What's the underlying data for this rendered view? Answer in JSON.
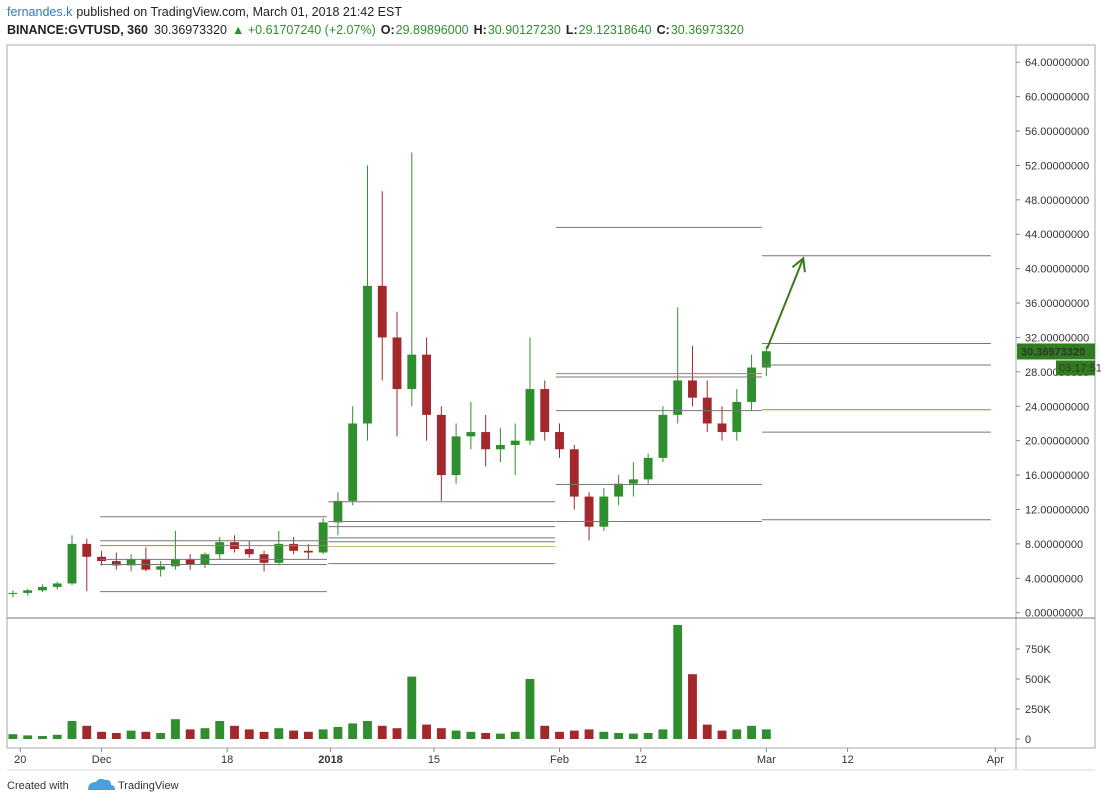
{
  "header": {
    "author": "fernandes.k",
    "published": "published on TradingView.com, March 01, 2018 21:42 EST",
    "symbol": "BINANCE:GVTUSD, 360",
    "last": "30.36973320",
    "change": "▲ +0.61707240 (+2.07%)",
    "ohlc": [
      {
        "label": "O:",
        "value": "29.89896000"
      },
      {
        "label": "H:",
        "value": "30.90127230"
      },
      {
        "label": "L:",
        "value": "29.12318640"
      },
      {
        "label": "C:",
        "value": "30.36973320"
      }
    ]
  },
  "chart_data": [
    {
      "type": "candlestick",
      "up_color": "#2f8f2f",
      "down_color": "#a3282c",
      "x": [
        -1,
        1,
        3,
        5,
        7,
        9,
        11,
        13,
        15,
        17,
        19,
        21,
        23,
        25,
        27,
        29,
        31,
        33,
        35,
        37,
        39,
        41,
        43,
        45,
        47,
        49,
        51,
        53,
        55,
        57,
        59,
        61,
        63,
        65,
        67,
        69,
        71,
        73,
        75,
        77,
        79,
        81,
        83,
        85,
        87,
        89,
        91,
        93,
        95,
        97,
        99,
        101
      ],
      "open": [
        2.2,
        2.3,
        2.6,
        3.0,
        3.4,
        8.0,
        6.5,
        6.0,
        5.5,
        6.2,
        5.0,
        5.4,
        6.2,
        5.6,
        6.8,
        8.2,
        7.4,
        6.8,
        5.8,
        8.0,
        7.2,
        7.0,
        10.5,
        13.0,
        22.0,
        38.0,
        32.0,
        26.0,
        30.0,
        23.0,
        16.0,
        20.5,
        21.0,
        19.0,
        19.5,
        20.0,
        26.0,
        21.0,
        19.0,
        13.5,
        10.0,
        13.5,
        15.0,
        15.5,
        18.0,
        23.0,
        27.0,
        25.0,
        22.0,
        21.0,
        24.5,
        28.5
      ],
      "high": [
        2.6,
        2.8,
        3.3,
        3.6,
        9.0,
        8.6,
        7.2,
        7.0,
        6.8,
        7.6,
        6.0,
        9.5,
        6.8,
        7.0,
        8.8,
        9.0,
        8.4,
        7.2,
        9.5,
        8.8,
        8.0,
        11.0,
        14.0,
        24.0,
        52.0,
        49.0,
        35.0,
        53.5,
        32.0,
        24.0,
        22.0,
        24.5,
        23.0,
        21.5,
        22.0,
        32.0,
        27.0,
        22.0,
        19.5,
        14.0,
        14.5,
        16.0,
        17.5,
        18.5,
        24.0,
        35.5,
        31.0,
        27.0,
        24.0,
        26.0,
        30.0,
        31.0
      ],
      "low": [
        1.8,
        2.0,
        2.4,
        2.7,
        3.2,
        2.5,
        5.5,
        5.0,
        4.8,
        4.8,
        4.2,
        5.0,
        5.0,
        5.2,
        6.2,
        7.0,
        6.4,
        4.8,
        5.5,
        6.8,
        6.2,
        6.8,
        9.0,
        12.5,
        20.0,
        27.0,
        20.5,
        24.0,
        20.0,
        13.0,
        15.0,
        19.0,
        17.0,
        17.5,
        16.0,
        19.5,
        20.0,
        18.0,
        12.0,
        8.4,
        9.5,
        12.5,
        13.5,
        15.0,
        17.5,
        22.0,
        24.0,
        21.0,
        20.0,
        20.0,
        23.5,
        27.5
      ],
      "close": [
        2.3,
        2.6,
        3.0,
        3.4,
        8.0,
        6.5,
        6.0,
        5.5,
        6.2,
        5.0,
        5.4,
        6.2,
        5.6,
        6.8,
        8.2,
        7.4,
        6.8,
        5.8,
        8.0,
        7.2,
        7.0,
        10.5,
        13.0,
        22.0,
        38.0,
        32.0,
        26.0,
        30.0,
        23.0,
        16.0,
        20.5,
        21.0,
        19.0,
        19.5,
        20.0,
        26.0,
        21.0,
        19.0,
        13.5,
        10.0,
        13.5,
        15.0,
        15.5,
        18.0,
        23.0,
        27.0,
        25.0,
        22.0,
        21.0,
        24.5,
        28.5,
        30.4
      ],
      "xlim": [
        -1.8,
        134.8
      ],
      "ylim": [
        -0.5,
        66
      ],
      "yticks": [
        {
          "value": 0,
          "label": "0.00000000"
        },
        {
          "value": 4,
          "label": "4.00000000"
        },
        {
          "value": 8,
          "label": "8.00000000"
        },
        {
          "value": 12,
          "label": "12.00000000"
        },
        {
          "value": 16,
          "label": "16.00000000"
        },
        {
          "value": 20,
          "label": "20.00000000"
        },
        {
          "value": 24,
          "label": "24.00000000"
        },
        {
          "value": 28,
          "label": "28.00000000"
        },
        {
          "value": 32,
          "label": "32.00000000"
        },
        {
          "value": 36,
          "label": "36.00000000"
        },
        {
          "value": 40,
          "label": "40.00000000"
        },
        {
          "value": 44,
          "label": "44.00000000"
        },
        {
          "value": 48,
          "label": "48.00000000"
        },
        {
          "value": 52,
          "label": "52.00000000"
        },
        {
          "value": 56,
          "label": "56.00000000"
        },
        {
          "value": 60,
          "label": "60.00000000"
        },
        {
          "value": 64,
          "label": "64.00000000"
        }
      ],
      "last_price": {
        "value": 30.3697332,
        "label": "30.36973320",
        "timer": "03:17:51",
        "color": "#2f7d1e"
      },
      "levels": [
        {
          "x": [
            10.8,
            41.5
          ],
          "y": 11.15,
          "color": "#777"
        },
        {
          "x": [
            10.8,
            41.5
          ],
          "y": 8.37,
          "color": "#777"
        },
        {
          "x": [
            10.8,
            41.5
          ],
          "y": 7.8,
          "color": "#9a8a40"
        },
        {
          "x": [
            10.8,
            41.5
          ],
          "y": 6.2,
          "color": "#777"
        },
        {
          "x": [
            10.8,
            41.5
          ],
          "y": 5.6,
          "color": "#777"
        },
        {
          "x": [
            10.8,
            41.5
          ],
          "y": 2.45,
          "color": "#777"
        },
        {
          "x": [
            41.7,
            72.4
          ],
          "y": 12.9,
          "color": "#777"
        },
        {
          "x": [
            41.7,
            72.4
          ],
          "y": 10.6,
          "color": "#777"
        },
        {
          "x": [
            41.7,
            72.4
          ],
          "y": 10.0,
          "color": "#777"
        },
        {
          "x": [
            41.7,
            72.4
          ],
          "y": 8.7,
          "color": "#777"
        },
        {
          "x": [
            41.7,
            72.4
          ],
          "y": 8.25,
          "color": "#777"
        },
        {
          "x": [
            41.7,
            72.4
          ],
          "y": 7.7,
          "color": "#c9b870"
        },
        {
          "x": [
            41.7,
            72.4
          ],
          "y": 5.7,
          "color": "#777"
        },
        {
          "x": [
            72.5,
            100.4
          ],
          "y": 44.8,
          "color": "#777"
        },
        {
          "x": [
            72.5,
            100.4
          ],
          "y": 27.8,
          "color": "#9a8a40"
        },
        {
          "x": [
            72.5,
            100.4
          ],
          "y": 27.4,
          "color": "#777"
        },
        {
          "x": [
            72.5,
            100.4
          ],
          "y": 23.5,
          "color": "#777"
        },
        {
          "x": [
            72.5,
            100.4
          ],
          "y": 14.9,
          "color": "#777"
        },
        {
          "x": [
            72.5,
            100.4
          ],
          "y": 10.6,
          "color": "#777"
        },
        {
          "x": [
            100.4,
            131.4
          ],
          "y": 41.5,
          "color": "#777"
        },
        {
          "x": [
            100.4,
            131.4
          ],
          "y": 31.3,
          "color": "#777"
        },
        {
          "x": [
            100.4,
            131.4
          ],
          "y": 28.8,
          "color": "#777"
        },
        {
          "x": [
            100.4,
            131.4
          ],
          "y": 23.6,
          "color": "#9a8a40"
        },
        {
          "x": [
            100.4,
            131.4
          ],
          "y": 21.0,
          "color": "#777"
        },
        {
          "x": [
            100.4,
            131.4
          ],
          "y": 10.8,
          "color": "#777"
        }
      ],
      "arrow": {
        "x": [
          101.1,
          106
        ],
        "y": [
          30.7,
          41.2
        ],
        "color": "#3a7a1a"
      }
    },
    {
      "type": "bar",
      "up_color": "#2f8f2f",
      "down_color": "#a3282c",
      "x": [
        -1,
        1,
        3,
        5,
        7,
        9,
        11,
        13,
        15,
        17,
        19,
        21,
        23,
        25,
        27,
        29,
        31,
        33,
        35,
        37,
        39,
        41,
        43,
        45,
        47,
        49,
        51,
        53,
        55,
        57,
        59,
        61,
        63,
        65,
        67,
        69,
        71,
        73,
        75,
        77,
        79,
        81,
        83,
        85,
        87,
        89,
        91,
        93,
        95,
        97,
        99,
        101
      ],
      "values": [
        40000,
        30000,
        25000,
        35000,
        150000,
        110000,
        60000,
        50000,
        70000,
        60000,
        50000,
        165000,
        80000,
        90000,
        150000,
        110000,
        80000,
        60000,
        90000,
        70000,
        60000,
        80000,
        100000,
        130000,
        150000,
        110000,
        90000,
        520000,
        120000,
        90000,
        70000,
        60000,
        50000,
        45000,
        60000,
        500000,
        110000,
        60000,
        70000,
        80000,
        60000,
        50000,
        45000,
        50000,
        80000,
        950000,
        540000,
        120000,
        70000,
        80000,
        110000,
        80000
      ],
      "xlim": [
        -1.8,
        134.8
      ],
      "ylim": [
        -75000,
        1000000
      ],
      "yticks": [
        0,
        {
          "value": 250000,
          "label": "250K"
        },
        {
          "value": 500000,
          "label": "500K"
        },
        {
          "value": 750000,
          "label": "750K"
        }
      ],
      "xticks": [
        {
          "value": 0,
          "label": "20"
        },
        {
          "value": 11,
          "label": "Dec"
        },
        {
          "value": 28,
          "label": "18"
        },
        {
          "value": 42,
          "label": "2018"
        },
        {
          "value": 56,
          "label": "15"
        },
        {
          "value": 73,
          "label": "Feb"
        },
        {
          "value": 84,
          "label": "12"
        },
        {
          "value": 101,
          "label": "Mar"
        },
        {
          "value": 112,
          "label": "12"
        },
        {
          "value": 132,
          "label": "Apr"
        }
      ]
    }
  ],
  "footer": {
    "created": "Created with",
    "brand": "TradingView"
  }
}
